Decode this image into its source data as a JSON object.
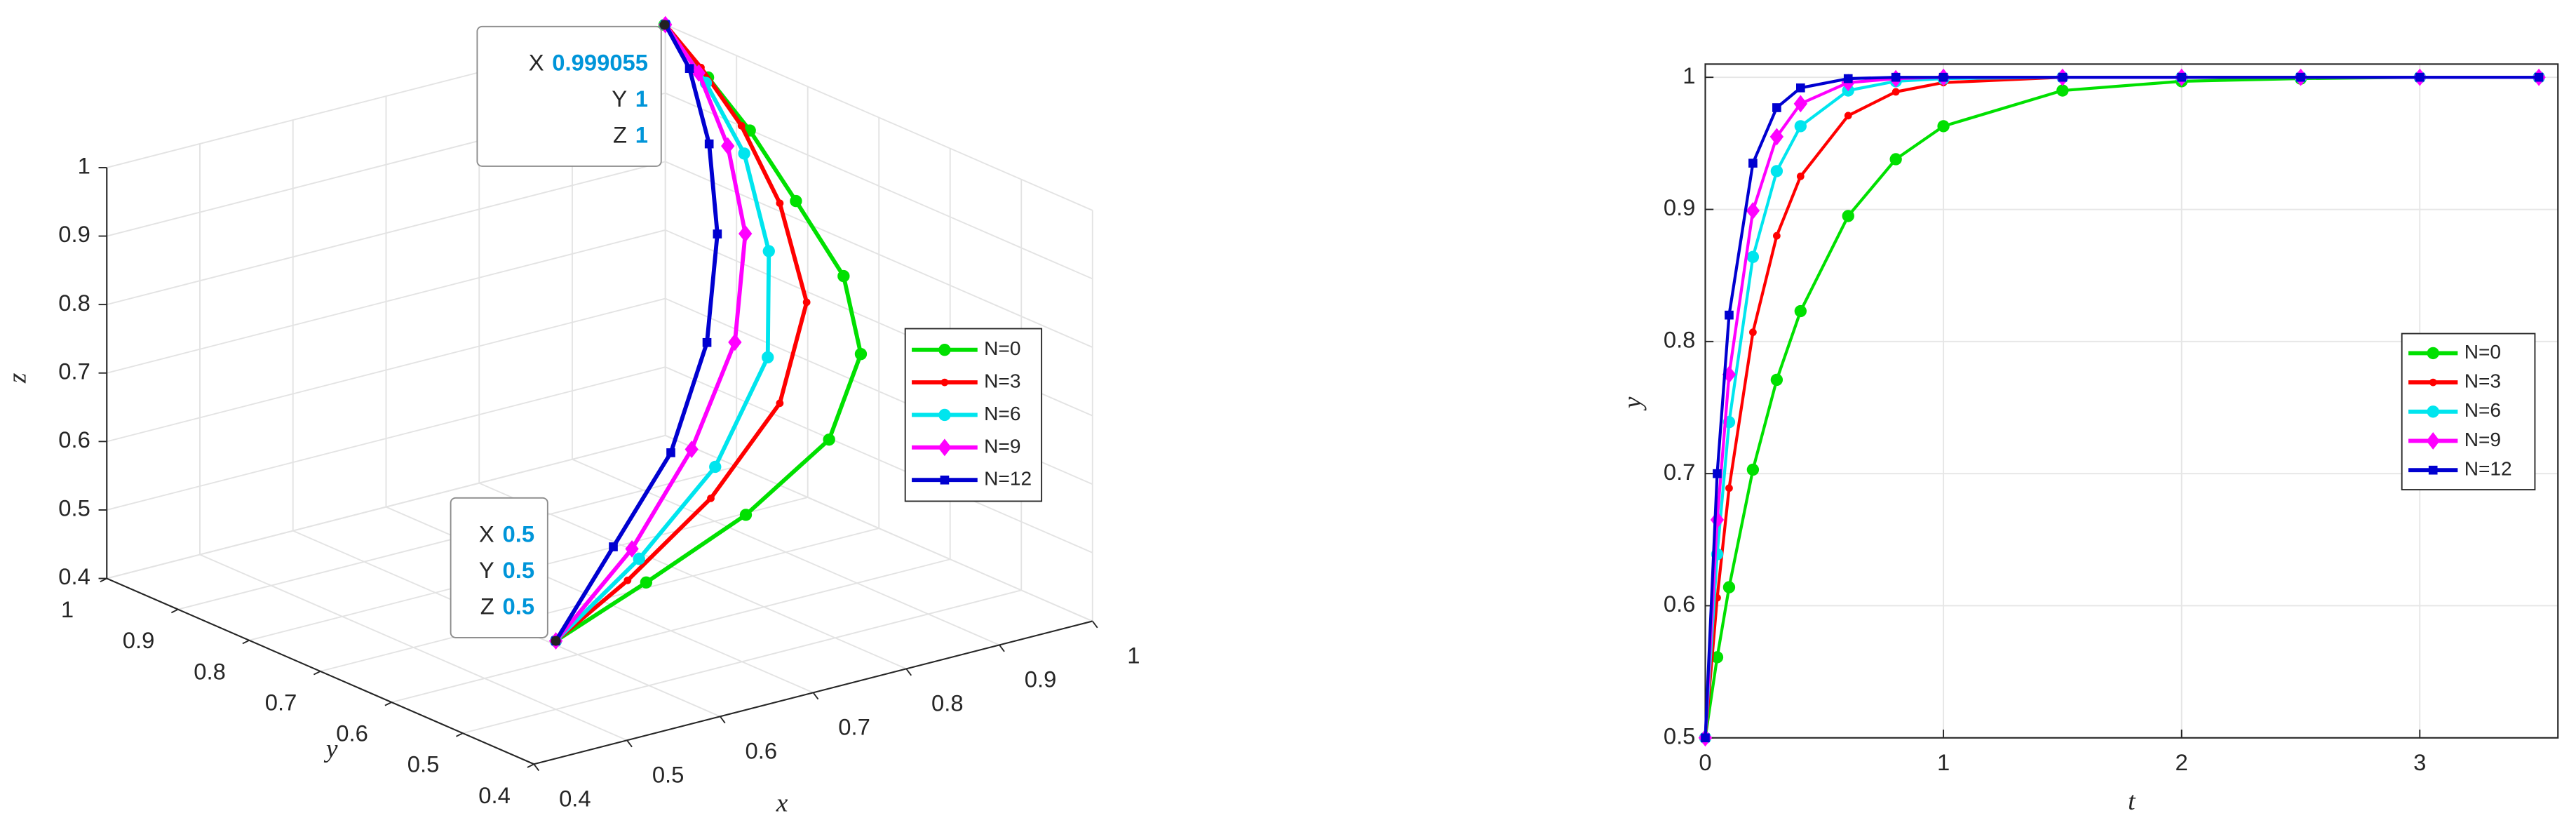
{
  "chart_data": [
    {
      "type": "line3d",
      "xlabel": "x",
      "ylabel": "y",
      "zlabel": "z",
      "xlim": [
        0.4,
        1
      ],
      "ylim": [
        0.4,
        1
      ],
      "zlim": [
        0.4,
        1
      ],
      "xticks": [
        0.4,
        0.5,
        0.6,
        0.7,
        0.8,
        0.9,
        1
      ],
      "yticks": [
        0.4,
        0.5,
        0.6,
        0.7,
        0.8,
        0.9,
        1
      ],
      "zticks": [
        0.4,
        0.5,
        0.6,
        0.7,
        0.8,
        0.9,
        1
      ],
      "grid": true,
      "legend": "east",
      "series": [
        {
          "name": "N=0",
          "color": "#00e000",
          "marker": "o",
          "x": [
            0.5,
            0.62,
            0.75,
            0.87,
            0.95,
            0.985,
            0.995,
            0.999,
            1,
            0.999055
          ],
          "y": [
            0.5,
            0.53,
            0.56,
            0.6,
            0.66,
            0.73,
            0.81,
            0.88,
            0.94,
            1
          ],
          "z": [
            0.5,
            0.53,
            0.57,
            0.62,
            0.69,
            0.76,
            0.83,
            0.9,
            0.95,
            1
          ]
        },
        {
          "name": "N=3",
          "color": "#ff0000",
          "marker": ".",
          "x": [
            0.5,
            0.6,
            0.72,
            0.84,
            0.93,
            0.97,
            0.99,
            1,
            1
          ],
          "y": [
            0.5,
            0.53,
            0.57,
            0.63,
            0.71,
            0.8,
            0.88,
            0.95,
            1
          ],
          "z": [
            0.5,
            0.54,
            0.6,
            0.67,
            0.75,
            0.84,
            0.91,
            0.96,
            1
          ]
        },
        {
          "name": "N=6",
          "color": "#00e5ee",
          "marker": "o",
          "x": [
            0.5,
            0.62,
            0.74,
            0.85,
            0.92,
            0.97,
            0.99,
            1
          ],
          "y": [
            0.5,
            0.54,
            0.59,
            0.66,
            0.75,
            0.85,
            0.93,
            1
          ],
          "z": [
            0.5,
            0.56,
            0.63,
            0.72,
            0.81,
            0.89,
            0.95,
            1
          ]
        },
        {
          "name": "N=9",
          "color": "#ff00ff",
          "marker": "d",
          "x": [
            0.5,
            0.62,
            0.73,
            0.83,
            0.91,
            0.96,
            0.99,
            1
          ],
          "y": [
            0.5,
            0.55,
            0.61,
            0.68,
            0.77,
            0.86,
            0.94,
            1
          ],
          "z": [
            0.5,
            0.57,
            0.65,
            0.74,
            0.83,
            0.9,
            0.96,
            1
          ]
        },
        {
          "name": "N=12",
          "color": "#0000d0",
          "marker": "s",
          "x": [
            0.5,
            0.6,
            0.7,
            0.8,
            0.88,
            0.94,
            0.98,
            1
          ],
          "y": [
            0.5,
            0.55,
            0.6,
            0.68,
            0.77,
            0.86,
            0.94,
            1
          ],
          "z": [
            0.5,
            0.58,
            0.66,
            0.75,
            0.84,
            0.91,
            0.97,
            1
          ]
        }
      ],
      "datatips": [
        {
          "labels": [
            "X",
            "Y",
            "Z"
          ],
          "values": [
            0.999055,
            1,
            1
          ]
        },
        {
          "labels": [
            "X",
            "Y",
            "Z"
          ],
          "values": [
            0.5,
            0.5,
            0.5
          ]
        }
      ]
    },
    {
      "type": "line",
      "xlabel": "t",
      "ylabel": "y",
      "xlim": [
        0,
        3.58
      ],
      "ylim": [
        0.5,
        1.01
      ],
      "xticks": [
        0,
        1,
        2,
        3
      ],
      "yticks": [
        0.5,
        0.6,
        0.7,
        0.8,
        0.9,
        1
      ],
      "grid": true,
      "legend": "east",
      "x": [
        0,
        0.05,
        0.1,
        0.2,
        0.3,
        0.4,
        0.6,
        0.8,
        1,
        1.5,
        2,
        2.5,
        3,
        3.5
      ],
      "series": [
        {
          "name": "N=0",
          "color": "#00e000",
          "marker": "o",
          "values": [
            0.5,
            0.561,
            0.614,
            0.703,
            0.771,
            0.823,
            0.895,
            0.938,
            0.963,
            0.99,
            0.997,
            0.999,
            1,
            1
          ]
        },
        {
          "name": "N=3",
          "color": "#ff0000",
          "marker": ".",
          "values": [
            0.5,
            0.606,
            0.689,
            0.807,
            0.88,
            0.925,
            0.971,
            0.989,
            0.996,
            1,
            1,
            1,
            1,
            1
          ]
        },
        {
          "name": "N=6",
          "color": "#00e5ee",
          "marker": "o",
          "values": [
            0.5,
            0.639,
            0.739,
            0.864,
            0.929,
            0.963,
            0.99,
            0.997,
            0.999,
            1,
            1,
            1,
            1,
            1
          ]
        },
        {
          "name": "N=9",
          "color": "#ff00ff",
          "marker": "d",
          "values": [
            0.5,
            0.665,
            0.775,
            0.899,
            0.955,
            0.98,
            0.996,
            0.999,
            1,
            1,
            1,
            1,
            1,
            1
          ]
        },
        {
          "name": "N=12",
          "color": "#0000d0",
          "marker": "s",
          "values": [
            0.5,
            0.7,
            0.82,
            0.935,
            0.977,
            0.992,
            0.999,
            1,
            1,
            1,
            1,
            1,
            1,
            1
          ]
        }
      ]
    }
  ]
}
